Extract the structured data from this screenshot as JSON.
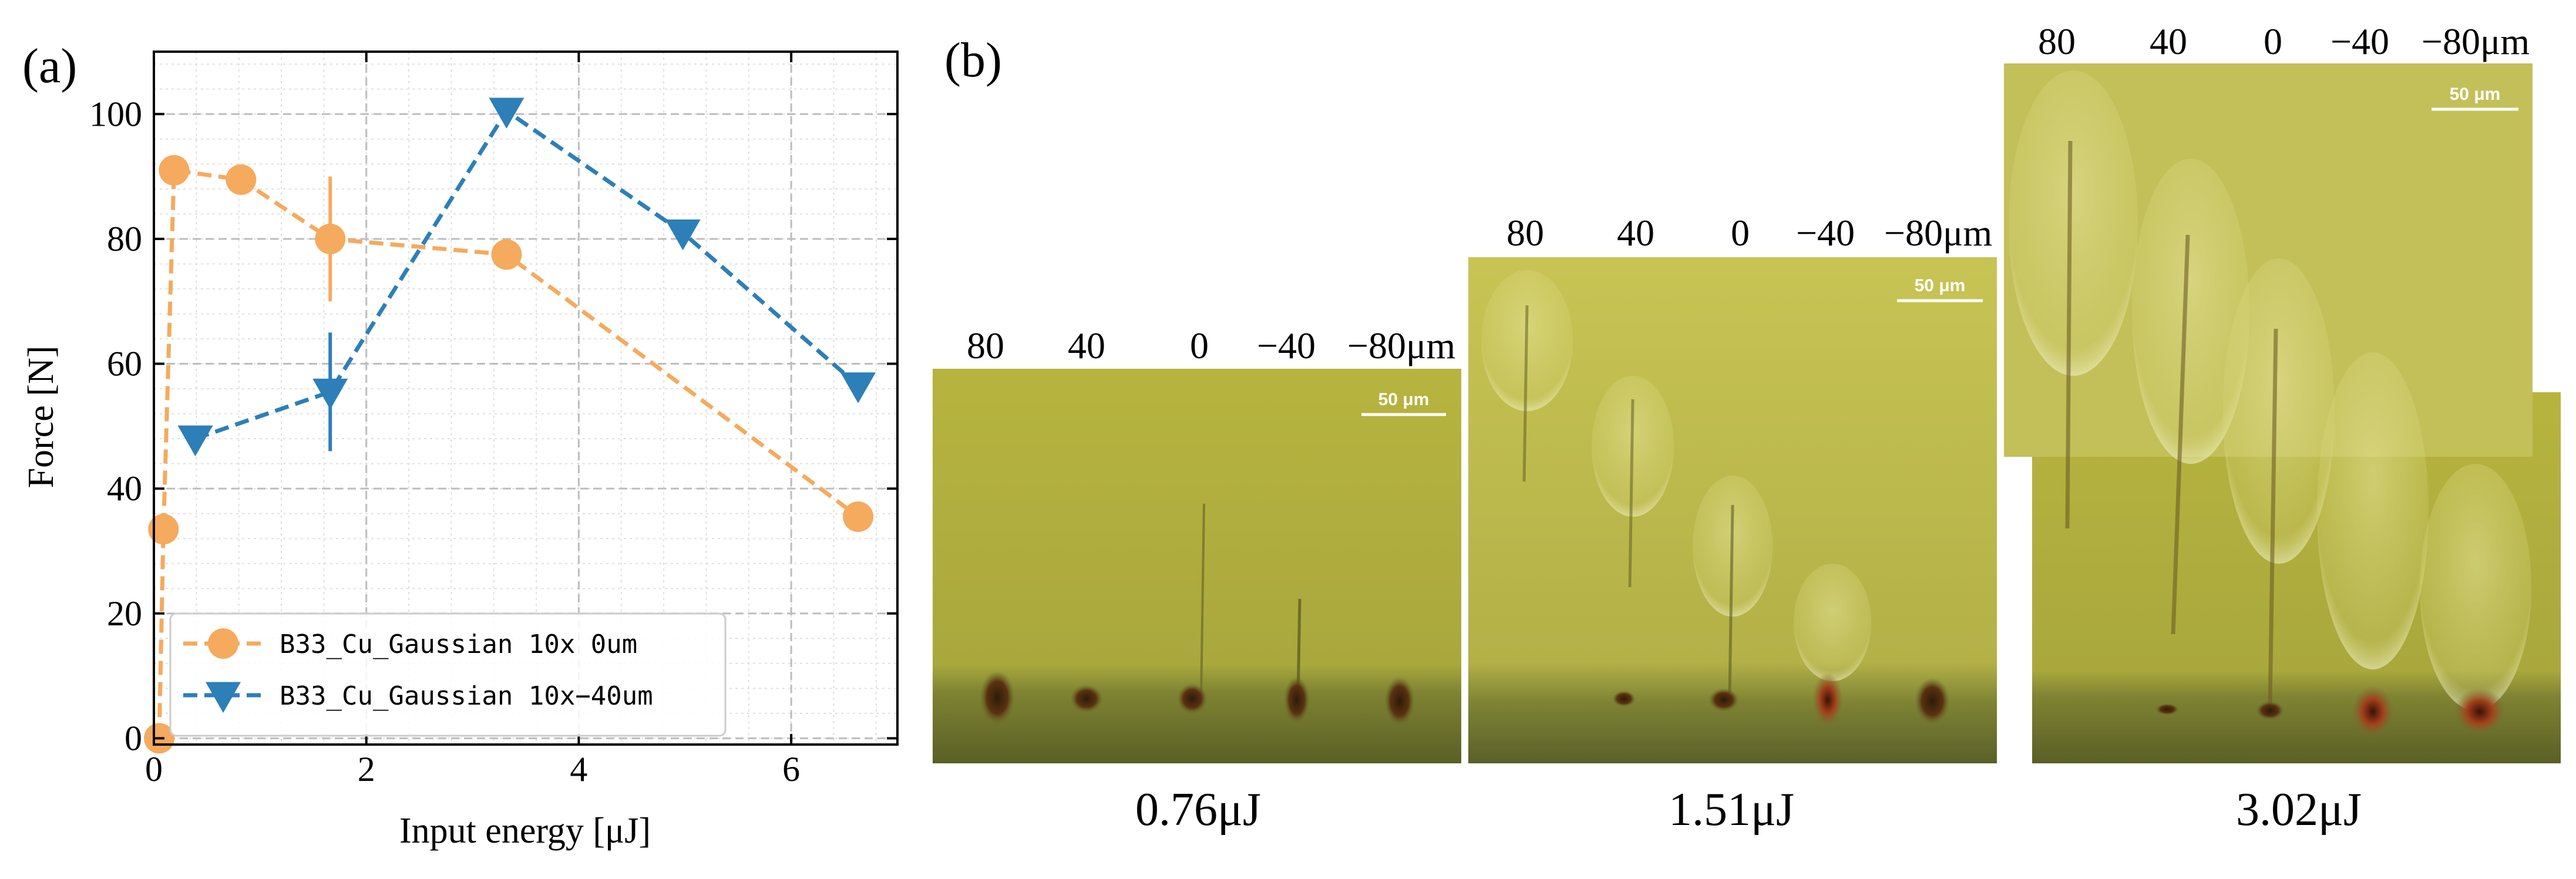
{
  "panel_a_label": "(a)",
  "panel_b_label": "(b)",
  "chart_data": {
    "type": "line",
    "title": "",
    "xlabel": "Input energy [μJ]",
    "ylabel": "Force [N]",
    "xlim": [
      0,
      7
    ],
    "ylim": [
      -1,
      110
    ],
    "xticks": [
      0,
      2,
      4,
      6
    ],
    "xtick_labels": [
      "0",
      "2",
      "4",
      "6"
    ],
    "yticks": [
      0,
      20,
      40,
      60,
      80,
      100
    ],
    "ytick_labels": [
      "0",
      "20",
      "40",
      "60",
      "80",
      "100"
    ],
    "grid": true,
    "legend_position": "lower-left",
    "series": [
      {
        "name": "B33_Cu_Gaussian 10x 0um",
        "color": "#f5aa5e",
        "marker": "circle",
        "line": "dashed",
        "x": [
          0.05,
          0.09,
          0.19,
          0.82,
          1.66,
          3.32,
          6.63
        ],
        "y": [
          0,
          33.5,
          91,
          89.5,
          80,
          77.5,
          35.5
        ],
        "yerr": [
          0,
          0,
          0,
          0,
          10,
          0,
          0
        ]
      },
      {
        "name": "B33_Cu_Gaussian 10x−40um",
        "color": "#2d7fb8",
        "marker": "triangle-down",
        "line": "dashed",
        "x": [
          0.39,
          1.66,
          3.32,
          4.98,
          6.63
        ],
        "y": [
          48,
          55.5,
          100.5,
          81,
          56.5
        ],
        "yerr": [
          0,
          9.5,
          0,
          0,
          0
        ]
      }
    ]
  },
  "panel_b": {
    "photos": [
      {
        "energy": "0.76μJ",
        "positions": [
          "80",
          "40",
          "0",
          "−40",
          "−80μm"
        ],
        "scale_bar": "50 μm"
      },
      {
        "energy": "1.51μJ",
        "positions": [
          "80",
          "40",
          "0",
          "−40",
          "−80μm"
        ],
        "scale_bar": "50 μm"
      },
      {
        "energy": "3.02μJ",
        "positions": [
          "80",
          "40",
          "0",
          "−40",
          "−80μm"
        ],
        "scale_bar": "50 μm"
      }
    ]
  }
}
